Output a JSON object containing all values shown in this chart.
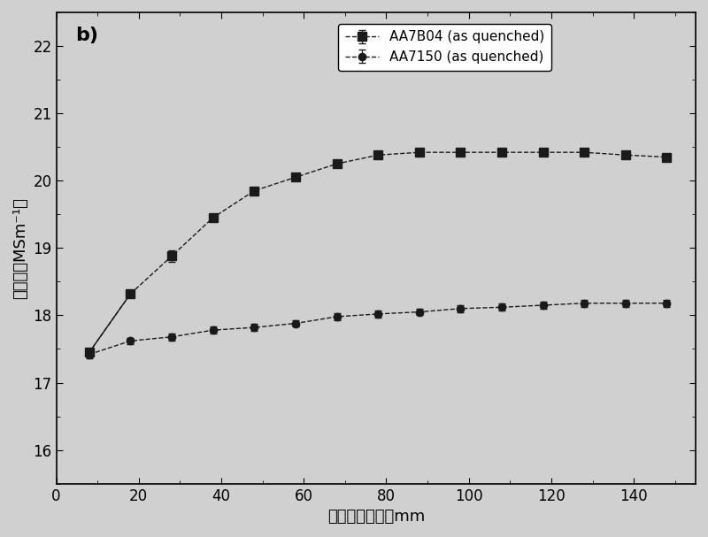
{
  "AA7B04_x": [
    8,
    18,
    28,
    38,
    48,
    58,
    68,
    78,
    88,
    98,
    108,
    118,
    128,
    138,
    148
  ],
  "AA7B04_y": [
    17.45,
    18.32,
    18.88,
    19.45,
    19.85,
    20.05,
    20.25,
    20.38,
    20.42,
    20.42,
    20.42,
    20.42,
    20.42,
    20.38,
    20.35
  ],
  "AA7B04_yerr": [
    0.05,
    0.05,
    0.08,
    0.05,
    0.05,
    0.05,
    0.05,
    0.05,
    0.05,
    0.05,
    0.05,
    0.05,
    0.05,
    0.05,
    0.05
  ],
  "AA7150_x": [
    8,
    18,
    28,
    38,
    48,
    58,
    68,
    78,
    88,
    98,
    108,
    118,
    128,
    138,
    148
  ],
  "AA7150_y": [
    17.42,
    17.62,
    17.68,
    17.78,
    17.82,
    17.88,
    17.98,
    18.02,
    18.05,
    18.1,
    18.12,
    18.15,
    18.18,
    18.18,
    18.18
  ],
  "AA7150_yerr": [
    0.06,
    0.05,
    0.05,
    0.05,
    0.05,
    0.05,
    0.05,
    0.05,
    0.05,
    0.05,
    0.05,
    0.05,
    0.05,
    0.05,
    0.05
  ],
  "xlabel": "距淡火端距离，mm",
  "ylabel": "电导率（MSm⁻¹）",
  "label_AA7B04": "AA7B04 (as quenched)",
  "label_AA7150": "AA7150 (as quenched)",
  "panel_label": "b)",
  "xlim": [
    0,
    155
  ],
  "ylim": [
    15.5,
    22.5
  ],
  "yticks": [
    16,
    17,
    18,
    19,
    20,
    21,
    22
  ],
  "xticks": [
    0,
    20,
    40,
    60,
    80,
    100,
    120,
    140
  ],
  "background_color": "#d0d0d0",
  "plot_bg_color": "#d0d0d0",
  "line_color": "#1a1a1a",
  "marker_square": "s",
  "marker_circle": "o",
  "markersize_square": 7,
  "markersize_circle": 6,
  "capsize": 3,
  "xlabel_fontsize": 13,
  "ylabel_fontsize": 13,
  "tick_fontsize": 12,
  "legend_fontsize": 11,
  "panel_fontsize": 16
}
